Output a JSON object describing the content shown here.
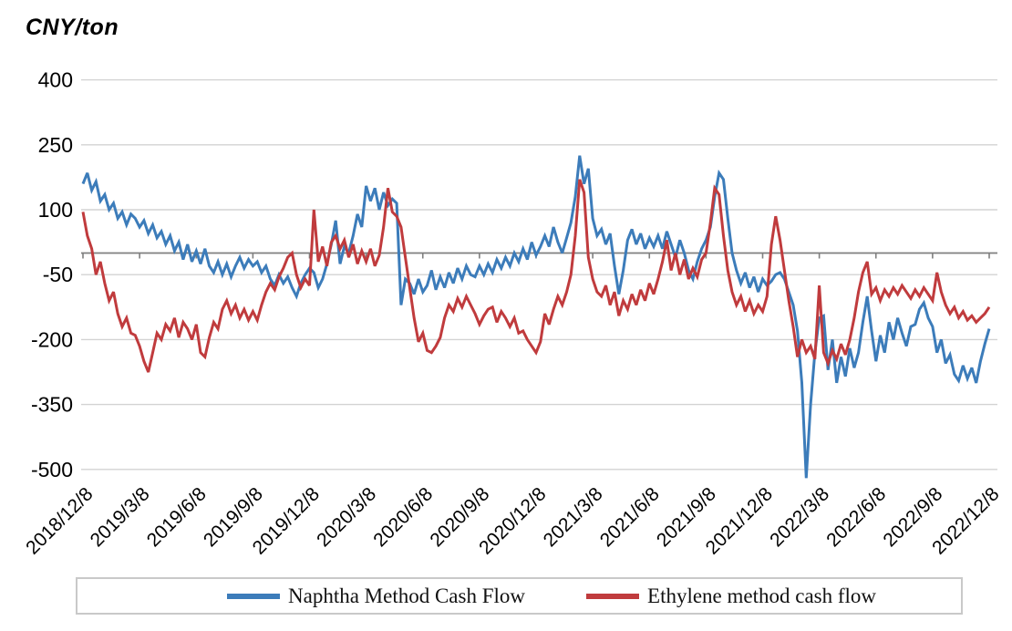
{
  "title": "CNY/ton",
  "colors": {
    "naphtha_blue": "#3c7cba",
    "ethylene_red": "#c03b3d",
    "gridline": "#d3d3d3",
    "zero_axis": "#7f7f7f",
    "legend_border": "#c9c9c9",
    "text": "#000000"
  },
  "chart_data": {
    "type": "line",
    "title": "CNY/ton",
    "ylabel": "CNY/ton",
    "xlabel": "",
    "ylim": [
      -500,
      400
    ],
    "yticks": [
      400,
      250,
      100,
      -50,
      -200,
      -350,
      -500
    ],
    "ytick_interval": 150,
    "grid": "horizontal",
    "zero_axis_line": true,
    "legend_position": "bottom",
    "x_tick_labels": [
      "2018/12/8",
      "2019/3/8",
      "2019/6/8",
      "2019/9/8",
      "2019/12/8",
      "2020/3/8",
      "2020/6/8",
      "2020/9/8",
      "2020/12/8",
      "2021/3/8",
      "2021/6/8",
      "2021/9/8",
      "2021/12/8",
      "2022/3/8",
      "2022/6/8",
      "2022/9/8",
      "2022/12/8"
    ],
    "x_resolution": "weekly",
    "series": [
      {
        "name": "Naphtha Method Cash Flow",
        "color": "#3c7cba",
        "values": [
          160,
          185,
          145,
          165,
          120,
          135,
          100,
          115,
          80,
          95,
          65,
          90,
          80,
          60,
          75,
          45,
          65,
          35,
          50,
          20,
          40,
          5,
          25,
          -15,
          20,
          -20,
          5,
          -25,
          10,
          -30,
          -45,
          -20,
          -50,
          -25,
          -55,
          -30,
          -10,
          -35,
          -15,
          -30,
          -20,
          -45,
          -30,
          -60,
          -75,
          -50,
          -70,
          -55,
          -80,
          -100,
          -70,
          -50,
          -35,
          -45,
          -80,
          -60,
          -25,
          20,
          75,
          -25,
          15,
          0,
          40,
          90,
          60,
          155,
          120,
          150,
          100,
          140,
          110,
          125,
          115,
          -120,
          -60,
          -70,
          -95,
          -60,
          -90,
          -75,
          -40,
          -85,
          -55,
          -80,
          -45,
          -70,
          -35,
          -60,
          -30,
          -50,
          -55,
          -30,
          -50,
          -25,
          -45,
          -15,
          -35,
          -10,
          -30,
          0,
          -20,
          10,
          -15,
          25,
          -5,
          15,
          40,
          15,
          60,
          25,
          0,
          35,
          70,
          130,
          225,
          160,
          195,
          80,
          40,
          55,
          20,
          45,
          -30,
          -95,
          -40,
          30,
          55,
          20,
          45,
          10,
          35,
          15,
          40,
          10,
          50,
          20,
          -10,
          30,
          0,
          -40,
          -60,
          -20,
          10,
          30,
          60,
          130,
          185,
          170,
          80,
          0,
          -40,
          -70,
          -45,
          -80,
          -55,
          -90,
          -60,
          -75,
          -65,
          -50,
          -45,
          -60,
          -90,
          -120,
          -180,
          -300,
          -520,
          -350,
          -230,
          -150,
          -145,
          -270,
          -200,
          -300,
          -240,
          -285,
          -220,
          -265,
          -230,
          -160,
          -100,
          -180,
          -250,
          -190,
          -230,
          -160,
          -200,
          -150,
          -185,
          -215,
          -170,
          -165,
          -130,
          -115,
          -150,
          -170,
          -230,
          -200,
          -255,
          -235,
          -280,
          -295,
          -260,
          -290,
          -265,
          -300,
          -250,
          -210,
          -175
        ]
      },
      {
        "name": "Ethylene method cash flow",
        "color": "#c03b3d",
        "values": [
          95,
          40,
          10,
          -50,
          -20,
          -70,
          -110,
          -90,
          -140,
          -170,
          -150,
          -185,
          -190,
          -215,
          -250,
          -275,
          -230,
          -185,
          -200,
          -165,
          -180,
          -150,
          -195,
          -160,
          -175,
          -200,
          -165,
          -230,
          -240,
          -195,
          -160,
          -175,
          -130,
          -110,
          -140,
          -120,
          -150,
          -130,
          -155,
          -135,
          -155,
          -120,
          -90,
          -70,
          -85,
          -55,
          -35,
          -10,
          0,
          -50,
          -80,
          -60,
          -75,
          100,
          -20,
          15,
          -30,
          25,
          40,
          10,
          30,
          -10,
          20,
          -25,
          5,
          -20,
          10,
          -30,
          -5,
          60,
          150,
          95,
          85,
          60,
          -10,
          -80,
          -150,
          -205,
          -185,
          -225,
          -230,
          -215,
          -195,
          -150,
          -120,
          -135,
          -105,
          -125,
          -100,
          -120,
          -140,
          -165,
          -145,
          -130,
          -125,
          -160,
          -135,
          -150,
          -170,
          -150,
          -185,
          -180,
          -200,
          -215,
          -230,
          -205,
          -140,
          -165,
          -130,
          -100,
          -120,
          -90,
          -50,
          40,
          170,
          140,
          -10,
          -60,
          -90,
          -100,
          -75,
          -120,
          -90,
          -145,
          -110,
          -130,
          -95,
          -120,
          -85,
          -110,
          -70,
          -95,
          -60,
          -20,
          30,
          -40,
          0,
          -50,
          -15,
          -60,
          -35,
          -55,
          -15,
          0,
          70,
          150,
          135,
          40,
          -40,
          -90,
          -120,
          -100,
          -135,
          -110,
          -140,
          -120,
          -135,
          -100,
          20,
          85,
          30,
          -40,
          -110,
          -170,
          -240,
          -200,
          -230,
          -215,
          -245,
          -75,
          -230,
          -255,
          -225,
          -245,
          -210,
          -235,
          -200,
          -150,
          -90,
          -45,
          -20,
          -95,
          -80,
          -110,
          -85,
          -100,
          -80,
          -95,
          -75,
          -90,
          -105,
          -85,
          -100,
          -80,
          -95,
          -110,
          -45,
          -90,
          -120,
          -140,
          -125,
          -150,
          -135,
          -155,
          -145,
          -160,
          -150,
          -140,
          -125
        ]
      }
    ]
  },
  "legend": {
    "items": [
      "Naphtha Method Cash Flow",
      "Ethylene method cash flow"
    ]
  }
}
